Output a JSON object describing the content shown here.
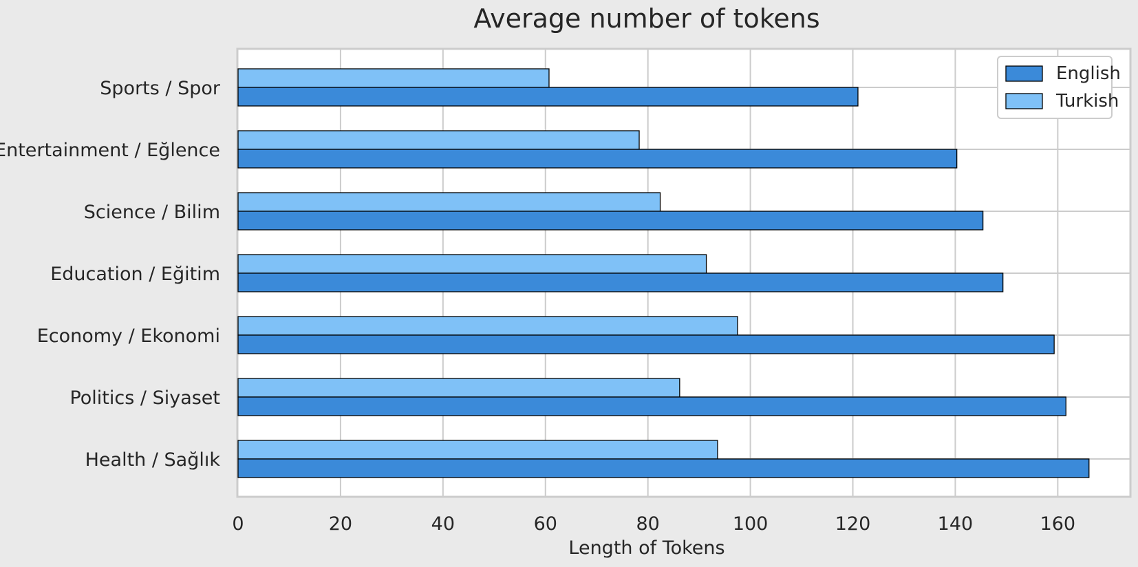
{
  "chart_data": {
    "type": "bar",
    "orientation": "horizontal",
    "title": "Average number of tokens",
    "xlabel": "Length of Tokens",
    "ylabel": "",
    "xlim": [
      0,
      174
    ],
    "xticks": [
      0,
      20,
      40,
      60,
      80,
      100,
      120,
      140,
      160
    ],
    "categories": [
      "Sports / Spor",
      "Entertainment / Eğlence",
      "Science / Bilim",
      "Education / Eğitim",
      "Economy / Ekonomi",
      "Politics / Siyaset",
      "Health / Sağlık"
    ],
    "series": [
      {
        "name": "English",
        "color": "#3b8ad9",
        "values": [
          121,
          140.3,
          145.4,
          149.3,
          159.3,
          161.6,
          166.1
        ]
      },
      {
        "name": "Turkish",
        "color": "#7fc1f7",
        "values": [
          60.7,
          78.3,
          82.4,
          91.4,
          97.5,
          86.2,
          93.6
        ]
      }
    ],
    "grid": true,
    "legend": "top-right",
    "colors": {
      "background": "#eaeaea",
      "plot_background": "#ffffff",
      "grid": "#cccccc",
      "bar_edge": "#000000"
    }
  }
}
